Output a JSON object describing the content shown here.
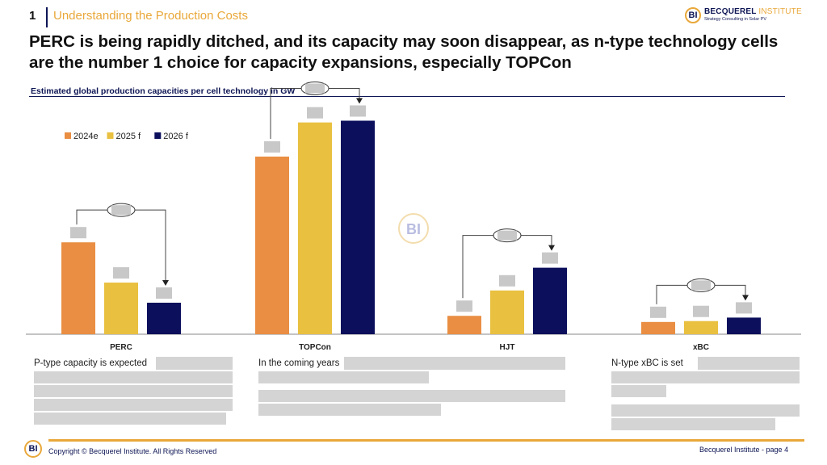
{
  "header": {
    "section_number": "1",
    "section_title": "Understanding the Production Costs",
    "logo_name": "BECQUEREL",
    "logo_name_suffix": "INSTITUTE",
    "logo_tagline": "Strategy Consulting in Solar PV",
    "logo_mark": "BI"
  },
  "headline": "PERC is being rapidly ditched, and its capacity may soon disappear, as n-type technology cells are the number 1 choice for capacity expansions, especially TOPCon",
  "chart_data": {
    "type": "bar",
    "title": "Estimated global production capacities per cell technology in GW",
    "categories": [
      "PERC",
      "TOPCon",
      "HJT",
      "xBC"
    ],
    "series": [
      {
        "name": "2024e",
        "color": "#e98e43",
        "values": [
          105,
          203,
          21,
          14
        ]
      },
      {
        "name": "2025 f",
        "color": "#e9c040",
        "values": [
          59,
          242,
          50,
          15
        ]
      },
      {
        "name": "2026 f",
        "color": "#0b0f5c",
        "values": [
          36,
          244,
          76,
          19
        ]
      }
    ],
    "ylim": [
      0,
      280
    ],
    "xlabel": "",
    "ylabel": "",
    "legend_position": "top-left",
    "data_labels_redacted": true,
    "growth_labels_redacted": true,
    "watermark": "BI"
  },
  "descriptions": [
    {
      "text": "P-type capacity is expected"
    },
    {
      "text": "In the coming years"
    },
    {
      "text": ""
    },
    {
      "text": "N-type xBC is set"
    }
  ],
  "footer": {
    "copyright": "Copyright © Becquerel Institute. All Rights Reserved",
    "page_label": "Becquerel Institute - page 4",
    "logo_mark": "BI"
  }
}
